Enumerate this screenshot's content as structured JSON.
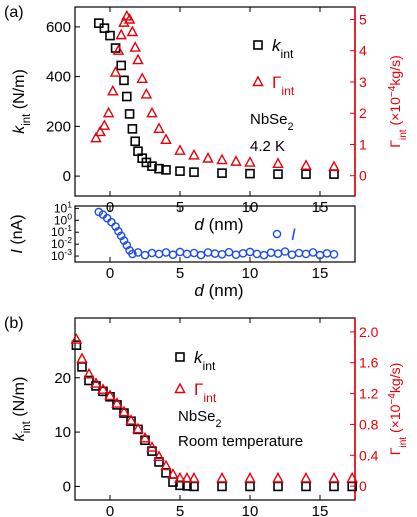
{
  "chart_data": [
    {
      "panel_label": "(a)",
      "type": "scatter",
      "xlabel": "d (nm)",
      "xlim": [
        -2.5,
        17.5
      ],
      "xticks": [
        "0",
        "5",
        "10",
        "15"
      ],
      "ylabel_left": "k_int (N/m)",
      "ylim_left": [
        -80,
        680
      ],
      "yticks_left": [
        "0",
        "200",
        "400",
        "600"
      ],
      "ylabel_right": "Γ_int (×10⁻⁴kg/s)",
      "ylim_right": [
        -0.65,
        5.4
      ],
      "yticks_right": [
        "0",
        "1",
        "2",
        "3",
        "4",
        "5"
      ],
      "annotations": [
        "NbSe2",
        "4.2 K"
      ],
      "series": [
        {
          "name": "k_int",
          "axis": "left",
          "marker": "square",
          "color": "#000000",
          "x": [
            -0.8,
            -0.4,
            0.0,
            0.4,
            0.8,
            1.0,
            1.2,
            1.4,
            1.6,
            1.8,
            2.0,
            2.3,
            2.6,
            3.0,
            3.5,
            4.0,
            5.0,
            6.0,
            8.0,
            10.0,
            12.0,
            14.0,
            16.0
          ],
          "y": [
            615,
            595,
            565,
            515,
            445,
            385,
            320,
            250,
            190,
            140,
            100,
            72,
            55,
            40,
            30,
            25,
            20,
            16,
            12,
            10,
            8,
            8,
            8
          ]
        },
        {
          "name": "Γ_int",
          "axis": "right",
          "marker": "triangle",
          "color": "#e8000b",
          "x": [
            -1.0,
            -0.7,
            -0.4,
            -0.1,
            0.2,
            0.4,
            0.6,
            0.8,
            1.0,
            1.2,
            1.4,
            1.6,
            1.8,
            2.0,
            2.3,
            2.6,
            3.0,
            3.5,
            4.0,
            5.0,
            6.0,
            7.0,
            8.0,
            9.0,
            10.0,
            12.0,
            14.0,
            16.0
          ],
          "y": [
            1.2,
            1.4,
            1.6,
            2.0,
            2.7,
            3.3,
            4.0,
            4.5,
            4.9,
            5.1,
            5.0,
            4.6,
            4.1,
            3.7,
            3.1,
            2.6,
            2.0,
            1.5,
            1.15,
            0.8,
            0.65,
            0.55,
            0.5,
            0.45,
            0.42,
            0.38,
            0.32,
            0.28
          ]
        }
      ]
    },
    {
      "type": "scatter",
      "xlabel": "d (nm)",
      "xlim": [
        -2.5,
        17.5
      ],
      "xticks": [
        "0",
        "5",
        "10",
        "15"
      ],
      "ylabel": "I (nA)",
      "yscale": "log",
      "ylim_log10": [
        -3.5,
        1.2
      ],
      "yticks": [
        "10^1",
        "10^0",
        "10^-1",
        "10^-2",
        "10^-3"
      ],
      "series": [
        {
          "name": "I",
          "marker": "circle",
          "color": "#1f4fe0",
          "x": [
            -0.8,
            -0.5,
            -0.2,
            0.1,
            0.4,
            0.6,
            0.8,
            1.0,
            1.2,
            1.4,
            1.6,
            2.0,
            2.5,
            3.0,
            3.5,
            4.0,
            4.5,
            5.0,
            5.5,
            6.0,
            6.5,
            7.0,
            7.5,
            8.0,
            8.5,
            9.0,
            9.5,
            10.0,
            10.5,
            11.0,
            11.5,
            12.0,
            12.5,
            13.0,
            13.5,
            14.0,
            14.5,
            15.0,
            15.5,
            16.0
          ],
          "y": [
            5.0,
            3.0,
            1.5,
            0.7,
            0.3,
            0.12,
            0.05,
            0.02,
            0.008,
            0.003,
            0.0015,
            0.002,
            0.0012,
            0.0018,
            0.0015,
            0.002,
            0.0013,
            0.0022,
            0.0015,
            0.0018,
            0.0012,
            0.002,
            0.0016,
            0.0014,
            0.0021,
            0.0013,
            0.0017,
            0.0022,
            0.0015,
            0.0012,
            0.0019,
            0.0016,
            0.0024,
            0.0013,
            0.0018,
            0.0015,
            0.002,
            0.0012,
            0.0017,
            0.0014
          ]
        }
      ]
    },
    {
      "panel_label": "(b)",
      "type": "scatter",
      "xlabel": "d (nm)",
      "xlim": [
        -2.5,
        17.5
      ],
      "xticks": [
        "0",
        "5",
        "10",
        "15"
      ],
      "ylabel_left": "k_int (N/m)",
      "ylim_left": [
        -2.5,
        31
      ],
      "yticks_left": [
        "0",
        "10",
        "20"
      ],
      "ylabel_right": "Γ_int (×10⁻⁴kg/s)",
      "ylim_right": [
        -0.18,
        2.18
      ],
      "yticks_right": [
        "0",
        "0.4",
        "0.8",
        "1.2",
        "1.6",
        "2.0"
      ],
      "annotations": [
        "NbSe2",
        "Room temperature"
      ],
      "series": [
        {
          "name": "k_int",
          "axis": "left",
          "marker": "square",
          "color": "#000000",
          "x": [
            -2.4,
            -2.0,
            -1.5,
            -1.0,
            -0.5,
            0.0,
            0.5,
            1.0,
            1.5,
            2.0,
            2.5,
            3.0,
            3.5,
            4.0,
            4.5,
            5.0,
            5.5,
            6.0,
            8.0,
            10.0,
            12.0,
            14.0,
            16.0,
            17.3
          ],
          "y": [
            26,
            22,
            19.5,
            18.5,
            17.5,
            16.5,
            15,
            13.5,
            12,
            10.5,
            8.5,
            6.5,
            4.5,
            2.5,
            0.8,
            0.2,
            0.1,
            0.0,
            0.0,
            0.0,
            0.0,
            0.0,
            0.0,
            0.0
          ]
        },
        {
          "name": "Γ_int",
          "axis": "right",
          "marker": "triangle",
          "color": "#e8000b",
          "x": [
            -2.4,
            -2.0,
            -1.5,
            -1.0,
            -0.5,
            0.0,
            0.5,
            1.0,
            1.5,
            2.0,
            2.5,
            3.0,
            3.5,
            4.0,
            4.5,
            5.0,
            5.5,
            6.0,
            8.0,
            10.0,
            12.0,
            14.0,
            16.0,
            17.3
          ],
          "y": [
            1.9,
            1.65,
            1.45,
            1.33,
            1.25,
            1.17,
            1.07,
            0.96,
            0.85,
            0.74,
            0.62,
            0.5,
            0.38,
            0.26,
            0.15,
            0.1,
            0.1,
            0.1,
            0.1,
            0.1,
            0.1,
            0.1,
            0.1,
            0.1
          ]
        }
      ]
    }
  ]
}
